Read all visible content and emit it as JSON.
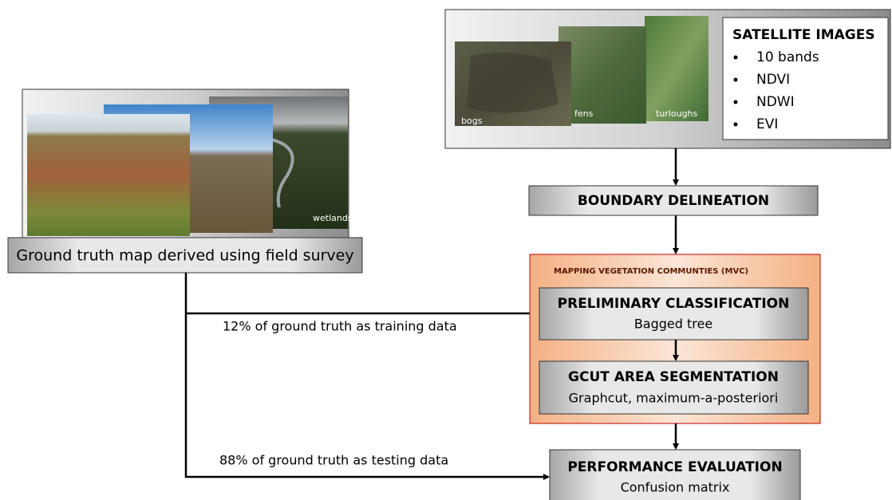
{
  "satellite": {
    "title": "SATELLITE IMAGES",
    "bullets": [
      "10 bands",
      "NDVI",
      "NDWI",
      "EVI"
    ],
    "image_labels": [
      "bogs",
      "fens",
      "turloughs"
    ]
  },
  "ground": {
    "image_label": "wetlands",
    "label": "Ground truth map derived using field survey"
  },
  "boundary": {
    "title": "BOUNDARY DELINEATION"
  },
  "mvc": {
    "title": "MAPPING VEGETATION COMMUNTIES (MVC)",
    "steps": [
      {
        "title": "PRELIMINARY CLASSIFICATION",
        "subtitle": "Bagged tree"
      },
      {
        "title": "GCUT AREA SEGMENTATION",
        "subtitle": "Graphcut, maximum-a-posteriori"
      }
    ]
  },
  "evaluation": {
    "title": "PERFORMANCE EVALUATION",
    "subtitle": "Confusion matrix"
  },
  "edges": {
    "training": "12% of ground truth as training data",
    "testing": "88% of ground truth as testing data"
  }
}
